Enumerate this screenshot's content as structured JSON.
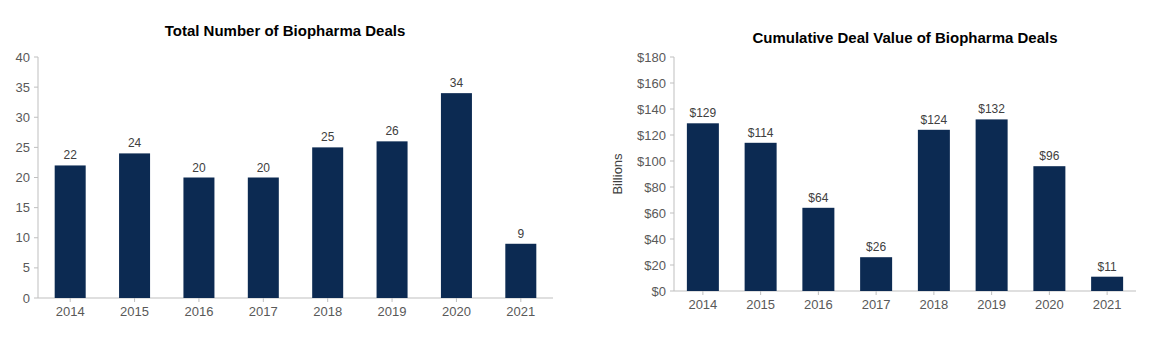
{
  "chart_data": [
    {
      "type": "bar",
      "title": "Total Number of Biopharma Deals",
      "categories": [
        "2014",
        "2015",
        "2016",
        "2017",
        "2018",
        "2019",
        "2020",
        "2021"
      ],
      "values": [
        22,
        24,
        20,
        20,
        25,
        26,
        34,
        9
      ],
      "color": "#0c2a52",
      "ylim": [
        0,
        40
      ],
      "yticks": [
        0,
        5,
        10,
        15,
        20,
        25,
        30,
        35,
        40
      ],
      "grid": false,
      "data_labels": true
    },
    {
      "type": "bar",
      "title": "Cumulative Deal Value of Biopharma Deals",
      "y_label": "Billions",
      "categories": [
        "2014",
        "2015",
        "2016",
        "2017",
        "2018",
        "2019",
        "2020",
        "2021"
      ],
      "values": [
        129,
        114,
        64,
        26,
        124,
        132,
        96,
        11
      ],
      "value_labels": [
        "$129",
        "$114",
        "$64",
        "$26",
        "$124",
        "$132",
        "$96",
        "$11"
      ],
      "color": "#0c2a52",
      "ylim": [
        0,
        180
      ],
      "yticks": [
        {
          "value": 0,
          "label": "$0"
        },
        {
          "value": 20,
          "label": "$20"
        },
        {
          "value": 40,
          "label": "$40"
        },
        {
          "value": 60,
          "label": "$60"
        },
        {
          "value": 80,
          "label": "$80"
        },
        {
          "value": 100,
          "label": "$100"
        },
        {
          "value": 120,
          "label": "$120"
        },
        {
          "value": 140,
          "label": "$140"
        },
        {
          "value": 160,
          "label": "$160"
        },
        {
          "value": 180,
          "label": "$180"
        }
      ],
      "grid": false,
      "data_labels": true
    }
  ]
}
